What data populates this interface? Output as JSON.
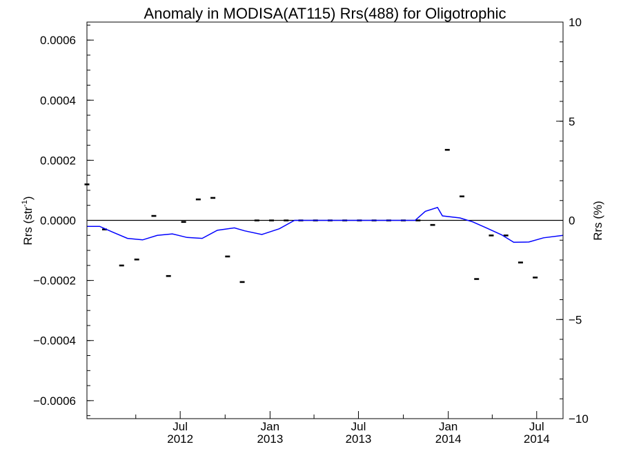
{
  "chart_data": {
    "type": "line",
    "title": "Anomaly in MODISA(AT115) Rrs(488) for Oligotrophic",
    "ylabel": "Rrs (str",
    "ylabel_sup": "-1",
    "ylabel_close": ")",
    "y2label": "Rrs (%)",
    "ylim": [
      -0.00066,
      0.00066
    ],
    "y2lim": [
      -10,
      10
    ],
    "xlim": [
      "2011-12-23",
      "2014-08-24"
    ],
    "grid": false,
    "y_ticks": [
      {
        "value": 0.0006,
        "label": "0.0006"
      },
      {
        "value": 0.0004,
        "label": "0.0004"
      },
      {
        "value": 0.0002,
        "label": "0.0002"
      },
      {
        "value": 0.0,
        "label": "0.0000"
      },
      {
        "value": -0.0002,
        "label": "−0.0002"
      },
      {
        "value": -0.0004,
        "label": "−0.0004"
      },
      {
        "value": -0.0006,
        "label": "−0.0006"
      }
    ],
    "y2_ticks": [
      {
        "value": 10,
        "label": "10"
      },
      {
        "value": 5,
        "label": "5"
      },
      {
        "value": 0,
        "label": "0"
      },
      {
        "value": -5,
        "label": "−5"
      },
      {
        "value": -10,
        "label": "−10"
      }
    ],
    "x_ticks": [
      {
        "date": "2012-07-01",
        "month": "Jul",
        "year": "2012"
      },
      {
        "date": "2013-01-01",
        "month": "Jan",
        "year": "2013"
      },
      {
        "date": "2013-07-01",
        "month": "Jul",
        "year": "2013"
      },
      {
        "date": "2014-01-01",
        "month": "Jan",
        "year": "2014"
      },
      {
        "date": "2014-07-01",
        "month": "Jul",
        "year": "2014"
      }
    ],
    "reference_line": 0,
    "series": [
      {
        "style": "marker",
        "color": "#000000",
        "points": [
          {
            "x": "2011-12-23",
            "y": 0.00012
          },
          {
            "x": "2012-01-28",
            "y": -3e-05
          },
          {
            "x": "2012-03-03",
            "y": -0.00015
          },
          {
            "x": "2012-04-03",
            "y": -0.00013
          },
          {
            "x": "2012-05-08",
            "y": 1.5e-05
          },
          {
            "x": "2012-06-07",
            "y": -0.000185
          },
          {
            "x": "2012-07-08",
            "y": -5e-06
          },
          {
            "x": "2012-08-07",
            "y": 7e-05
          },
          {
            "x": "2012-09-06",
            "y": 7.5e-05
          },
          {
            "x": "2012-10-06",
            "y": -0.00012
          },
          {
            "x": "2012-11-05",
            "y": -0.000205
          },
          {
            "x": "2012-12-05",
            "y": 0.0
          },
          {
            "x": "2013-01-04",
            "y": 0.0
          },
          {
            "x": "2013-02-03",
            "y": 0.0
          },
          {
            "x": "2013-03-05",
            "y": 0.0
          },
          {
            "x": "2013-04-04",
            "y": 0.0
          },
          {
            "x": "2013-05-04",
            "y": 0.0
          },
          {
            "x": "2013-06-03",
            "y": 0.0
          },
          {
            "x": "2013-07-03",
            "y": 0.0
          },
          {
            "x": "2013-08-02",
            "y": 0.0
          },
          {
            "x": "2013-09-01",
            "y": 0.0
          },
          {
            "x": "2013-10-01",
            "y": 0.0
          },
          {
            "x": "2013-10-31",
            "y": 0.0
          },
          {
            "x": "2013-11-30",
            "y": -1.5e-05
          },
          {
            "x": "2013-12-30",
            "y": 0.000235
          },
          {
            "x": "2014-01-29",
            "y": 8e-05
          },
          {
            "x": "2014-02-28",
            "y": -0.000195
          },
          {
            "x": "2014-03-30",
            "y": -5e-05
          },
          {
            "x": "2014-04-29",
            "y": -5e-05
          },
          {
            "x": "2014-05-29",
            "y": -0.00014
          },
          {
            "x": "2014-06-28",
            "y": -0.00019
          }
        ]
      },
      {
        "style": "line",
        "color": "#0000ff",
        "points": [
          {
            "x": "2011-12-23",
            "y": -2e-05
          },
          {
            "x": "2012-01-18",
            "y": -2e-05
          },
          {
            "x": "2012-02-15",
            "y": -4e-05
          },
          {
            "x": "2012-03-15",
            "y": -6e-05
          },
          {
            "x": "2012-04-15",
            "y": -6.5e-05
          },
          {
            "x": "2012-05-15",
            "y": -5e-05
          },
          {
            "x": "2012-06-15",
            "y": -4.5e-05
          },
          {
            "x": "2012-07-15",
            "y": -5.7e-05
          },
          {
            "x": "2012-08-15",
            "y": -6e-05
          },
          {
            "x": "2012-09-15",
            "y": -3.3e-05
          },
          {
            "x": "2012-10-20",
            "y": -2.5e-05
          },
          {
            "x": "2012-11-10",
            "y": -3.5e-05
          },
          {
            "x": "2012-12-15",
            "y": -4.7e-05
          },
          {
            "x": "2013-01-20",
            "y": -2.8e-05
          },
          {
            "x": "2013-02-20",
            "y": 0.0
          },
          {
            "x": "2013-10-25",
            "y": 0.0
          },
          {
            "x": "2013-11-15",
            "y": 3e-05
          },
          {
            "x": "2013-12-10",
            "y": 4.3e-05
          },
          {
            "x": "2013-12-20",
            "y": 1.5e-05
          },
          {
            "x": "2014-01-25",
            "y": 8e-06
          },
          {
            "x": "2014-02-20",
            "y": -5e-06
          },
          {
            "x": "2014-03-20",
            "y": -2.5e-05
          },
          {
            "x": "2014-04-20",
            "y": -4.8e-05
          },
          {
            "x": "2014-05-15",
            "y": -7.3e-05
          },
          {
            "x": "2014-06-15",
            "y": -7.2e-05
          },
          {
            "x": "2014-07-15",
            "y": -5.8e-05
          },
          {
            "x": "2014-08-24",
            "y": -5e-05
          }
        ]
      }
    ]
  }
}
